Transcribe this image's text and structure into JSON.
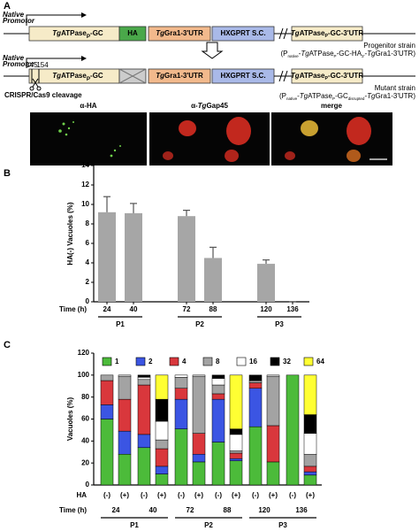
{
  "figure": {
    "panel_a": {
      "label": "A",
      "promoter": [
        "Native",
        "Promotor"
      ],
      "gene": [
        {
          "t": "Tg",
          "s": "i"
        },
        {
          "t": "ATPase"
        },
        {
          "t": "P",
          "s": "sub"
        },
        {
          "t": "-GC"
        }
      ],
      "tag": "HA",
      "utr": [
        {
          "t": "Tg",
          "s": "i"
        },
        {
          "t": "Gra1-3'UTR"
        }
      ],
      "marker": "HXGPRT S.C.",
      "utr3": [
        {
          "t": "Tg",
          "s": "i"
        },
        {
          "t": "ATPase"
        },
        {
          "t": "P",
          "s": "sub"
        },
        {
          "t": "-GC-3'UTR"
        }
      ],
      "progenitor": "Progenitor strain",
      "progenitor_genotype": [
        {
          "t": "(P"
        },
        {
          "t": "native",
          "s": "sub"
        },
        {
          "t": "-"
        },
        {
          "t": "Tg",
          "s": "i"
        },
        {
          "t": "ATPase"
        },
        {
          "t": "P",
          "s": "sub"
        },
        {
          "t": "-GC-HA"
        },
        {
          "t": "3'",
          "s": "sub"
        },
        {
          "t": "-"
        },
        {
          "t": "Tg",
          "s": "i"
        },
        {
          "t": "Gra1-3'UTR)"
        }
      ],
      "sites": [
        "145",
        "154"
      ],
      "cleavage": "CRISPR/Cas9 cleavage",
      "mutant": "Mutant strain",
      "mutant_genotype": [
        {
          "t": "(P"
        },
        {
          "t": "native",
          "s": "sub"
        },
        {
          "t": "-"
        },
        {
          "t": "Tg",
          "s": "i"
        },
        {
          "t": "ATPase"
        },
        {
          "t": "P",
          "s": "sub"
        },
        {
          "t": "-GC"
        },
        {
          "t": "disrupted",
          "s": "sub"
        },
        {
          "t": "-"
        },
        {
          "t": "Tg",
          "s": "i"
        },
        {
          "t": "Gra1-3'UTR)"
        }
      ],
      "images": [
        [
          {
            "t": "α-HA"
          }
        ],
        [
          {
            "t": "α-"
          },
          {
            "t": "Tg",
            "s": "i"
          },
          {
            "t": "Gap45"
          }
        ],
        [
          {
            "t": "merge"
          }
        ]
      ]
    }
  },
  "chart_data": [
    {
      "type": "bar",
      "label": "B",
      "ylabel": "HA(-) Vacuoles (%)",
      "xlabel": "Time (h)",
      "categories": [
        "24",
        "40",
        "72",
        "88",
        "120",
        "136"
      ],
      "groups": [
        "P1",
        "P2",
        "P3"
      ],
      "values": [
        9.2,
        9.1,
        8.8,
        4.5,
        3.9,
        0
      ],
      "errors": [
        1.6,
        1.0,
        0.6,
        1.1,
        0.4,
        0
      ],
      "color": "#a6a6a6",
      "ylim": [
        0,
        14
      ],
      "yticks": [
        0,
        2,
        4,
        6,
        8,
        10,
        12,
        14
      ]
    },
    {
      "type": "stacked_bar",
      "label": "C",
      "ylabel": "Vacuoles (%)",
      "xlabel": "Time (h)",
      "hlabel": "HA",
      "categories": [
        "(-)",
        "(+)",
        "(-)",
        "(+)",
        "(-)",
        "(+)",
        "(-)",
        "(+)",
        "(-)",
        "(+)",
        "(-)",
        "(+)"
      ],
      "times": [
        "24",
        "40",
        "72",
        "88",
        "120",
        "136"
      ],
      "groups": [
        "P1",
        "P2",
        "P3"
      ],
      "series": [
        {
          "name": "1",
          "color": "#4cbb3a",
          "values": [
            60,
            28,
            34,
            10,
            51,
            21,
            39,
            22,
            53,
            21,
            100,
            9
          ]
        },
        {
          "name": "2",
          "color": "#3b55e3",
          "values": [
            13,
            21,
            12,
            7,
            27,
            7,
            39,
            2,
            35,
            0,
            0,
            3
          ]
        },
        {
          "name": "4",
          "color": "#d9373c",
          "values": [
            22,
            29,
            45,
            16,
            10,
            19,
            5,
            5,
            5,
            33,
            0,
            5
          ]
        },
        {
          "name": "8",
          "color": "#a3a3a3",
          "values": [
            5,
            21,
            5,
            8,
            10,
            52,
            8,
            2,
            2,
            45,
            0,
            11
          ]
        },
        {
          "name": "16",
          "color": "#ffffff",
          "values": [
            0,
            1,
            2,
            17,
            2,
            1,
            6,
            15,
            0,
            1,
            0,
            19
          ]
        },
        {
          "name": "32",
          "color": "#000000",
          "values": [
            0,
            0,
            2,
            20,
            0,
            0,
            3,
            5,
            5,
            0,
            0,
            17
          ]
        },
        {
          "name": "64",
          "color": "#ffff33",
          "values": [
            0,
            0,
            0,
            22,
            0,
            0,
            0,
            49,
            0,
            0,
            0,
            36
          ]
        }
      ],
      "ylim": [
        0,
        120
      ],
      "yticks": [
        0,
        20,
        40,
        60,
        80,
        100,
        120
      ]
    }
  ]
}
